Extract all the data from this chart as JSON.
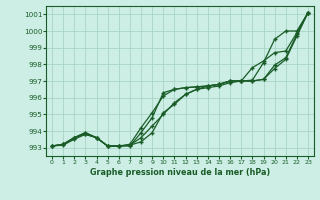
{
  "bg_color": "#cceee4",
  "grid_color": "#aad4c8",
  "line_color": "#1a5c28",
  "xlabel": "Graphe pression niveau de la mer (hPa)",
  "xlim": [
    -0.5,
    23.5
  ],
  "ylim": [
    992.5,
    1001.5
  ],
  "yticks": [
    993,
    994,
    995,
    996,
    997,
    998,
    999,
    1000,
    1001
  ],
  "xticks": [
    0,
    1,
    2,
    3,
    4,
    5,
    6,
    7,
    8,
    9,
    10,
    11,
    12,
    13,
    14,
    15,
    16,
    17,
    18,
    19,
    20,
    21,
    22,
    23
  ],
  "line1": [
    993.1,
    993.2,
    993.6,
    993.9,
    993.6,
    993.1,
    993.1,
    993.1,
    993.9,
    994.8,
    996.3,
    996.5,
    996.6,
    996.65,
    996.7,
    996.8,
    997.0,
    997.0,
    997.05,
    998.1,
    999.5,
    1000.0,
    1000.0,
    1001.1
  ],
  "line2": [
    993.1,
    993.2,
    993.6,
    993.9,
    993.6,
    993.1,
    993.1,
    993.2,
    994.2,
    995.1,
    996.1,
    996.5,
    996.6,
    996.65,
    996.7,
    996.8,
    997.0,
    997.0,
    997.8,
    998.2,
    998.7,
    998.8,
    999.9,
    1001.1
  ],
  "line3": [
    993.1,
    993.2,
    993.6,
    993.8,
    993.6,
    993.1,
    993.1,
    993.15,
    993.6,
    994.3,
    995.0,
    995.7,
    996.2,
    996.5,
    996.7,
    996.8,
    997.0,
    997.0,
    997.0,
    997.1,
    997.95,
    998.4,
    999.8,
    1001.1
  ],
  "line4": [
    993.1,
    993.15,
    993.5,
    993.8,
    993.6,
    993.1,
    993.1,
    993.15,
    993.35,
    993.9,
    995.1,
    995.6,
    996.2,
    996.5,
    996.6,
    996.7,
    996.9,
    997.0,
    997.0,
    997.1,
    997.75,
    998.3,
    999.7,
    1001.1
  ]
}
